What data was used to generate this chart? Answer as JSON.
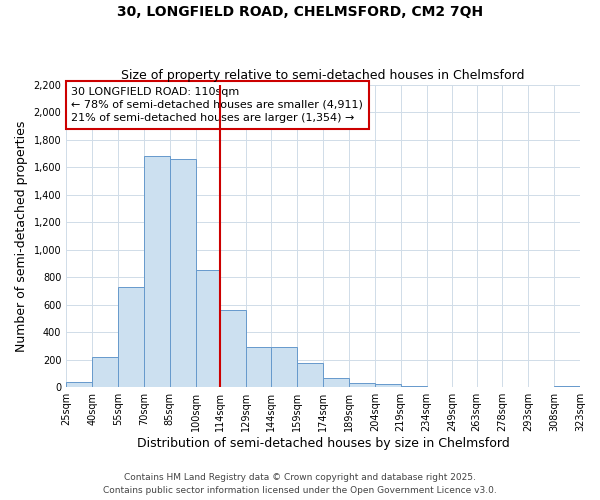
{
  "title_line1": "30, LONGFIELD ROAD, CHELMSFORD, CM2 7QH",
  "title_line2": "Size of property relative to semi-detached houses in Chelmsford",
  "xlabel": "Distribution of semi-detached houses by size in Chelmsford",
  "ylabel": "Number of semi-detached properties",
  "bar_color": "#cce0f0",
  "bar_edge_color": "#6699cc",
  "vline_x": 114,
  "vline_color": "#cc0000",
  "annotation_title": "30 LONGFIELD ROAD: 110sqm",
  "annotation_line1": "← 78% of semi-detached houses are smaller (4,911)",
  "annotation_line2": "21% of semi-detached houses are larger (1,354) →",
  "footer_line1": "Contains HM Land Registry data © Crown copyright and database right 2025.",
  "footer_line2": "Contains public sector information licensed under the Open Government Licence v3.0.",
  "bins": [
    25,
    40,
    55,
    70,
    85,
    100,
    114,
    129,
    144,
    159,
    174,
    189,
    204,
    219,
    234,
    249,
    263,
    278,
    293,
    308,
    323
  ],
  "counts": [
    35,
    220,
    730,
    1680,
    1660,
    850,
    560,
    295,
    295,
    175,
    65,
    30,
    20,
    10,
    5,
    5,
    3,
    2,
    1,
    8
  ],
  "ylim": [
    0,
    2200
  ],
  "yticks": [
    0,
    200,
    400,
    600,
    800,
    1000,
    1200,
    1400,
    1600,
    1800,
    2000,
    2200
  ],
  "background_color": "#ffffff",
  "grid_color": "#d0dce8",
  "title_fontsize": 10,
  "subtitle_fontsize": 9,
  "axis_label_fontsize": 9,
  "tick_fontsize": 7,
  "footer_fontsize": 6.5,
  "annotation_fontsize": 8
}
